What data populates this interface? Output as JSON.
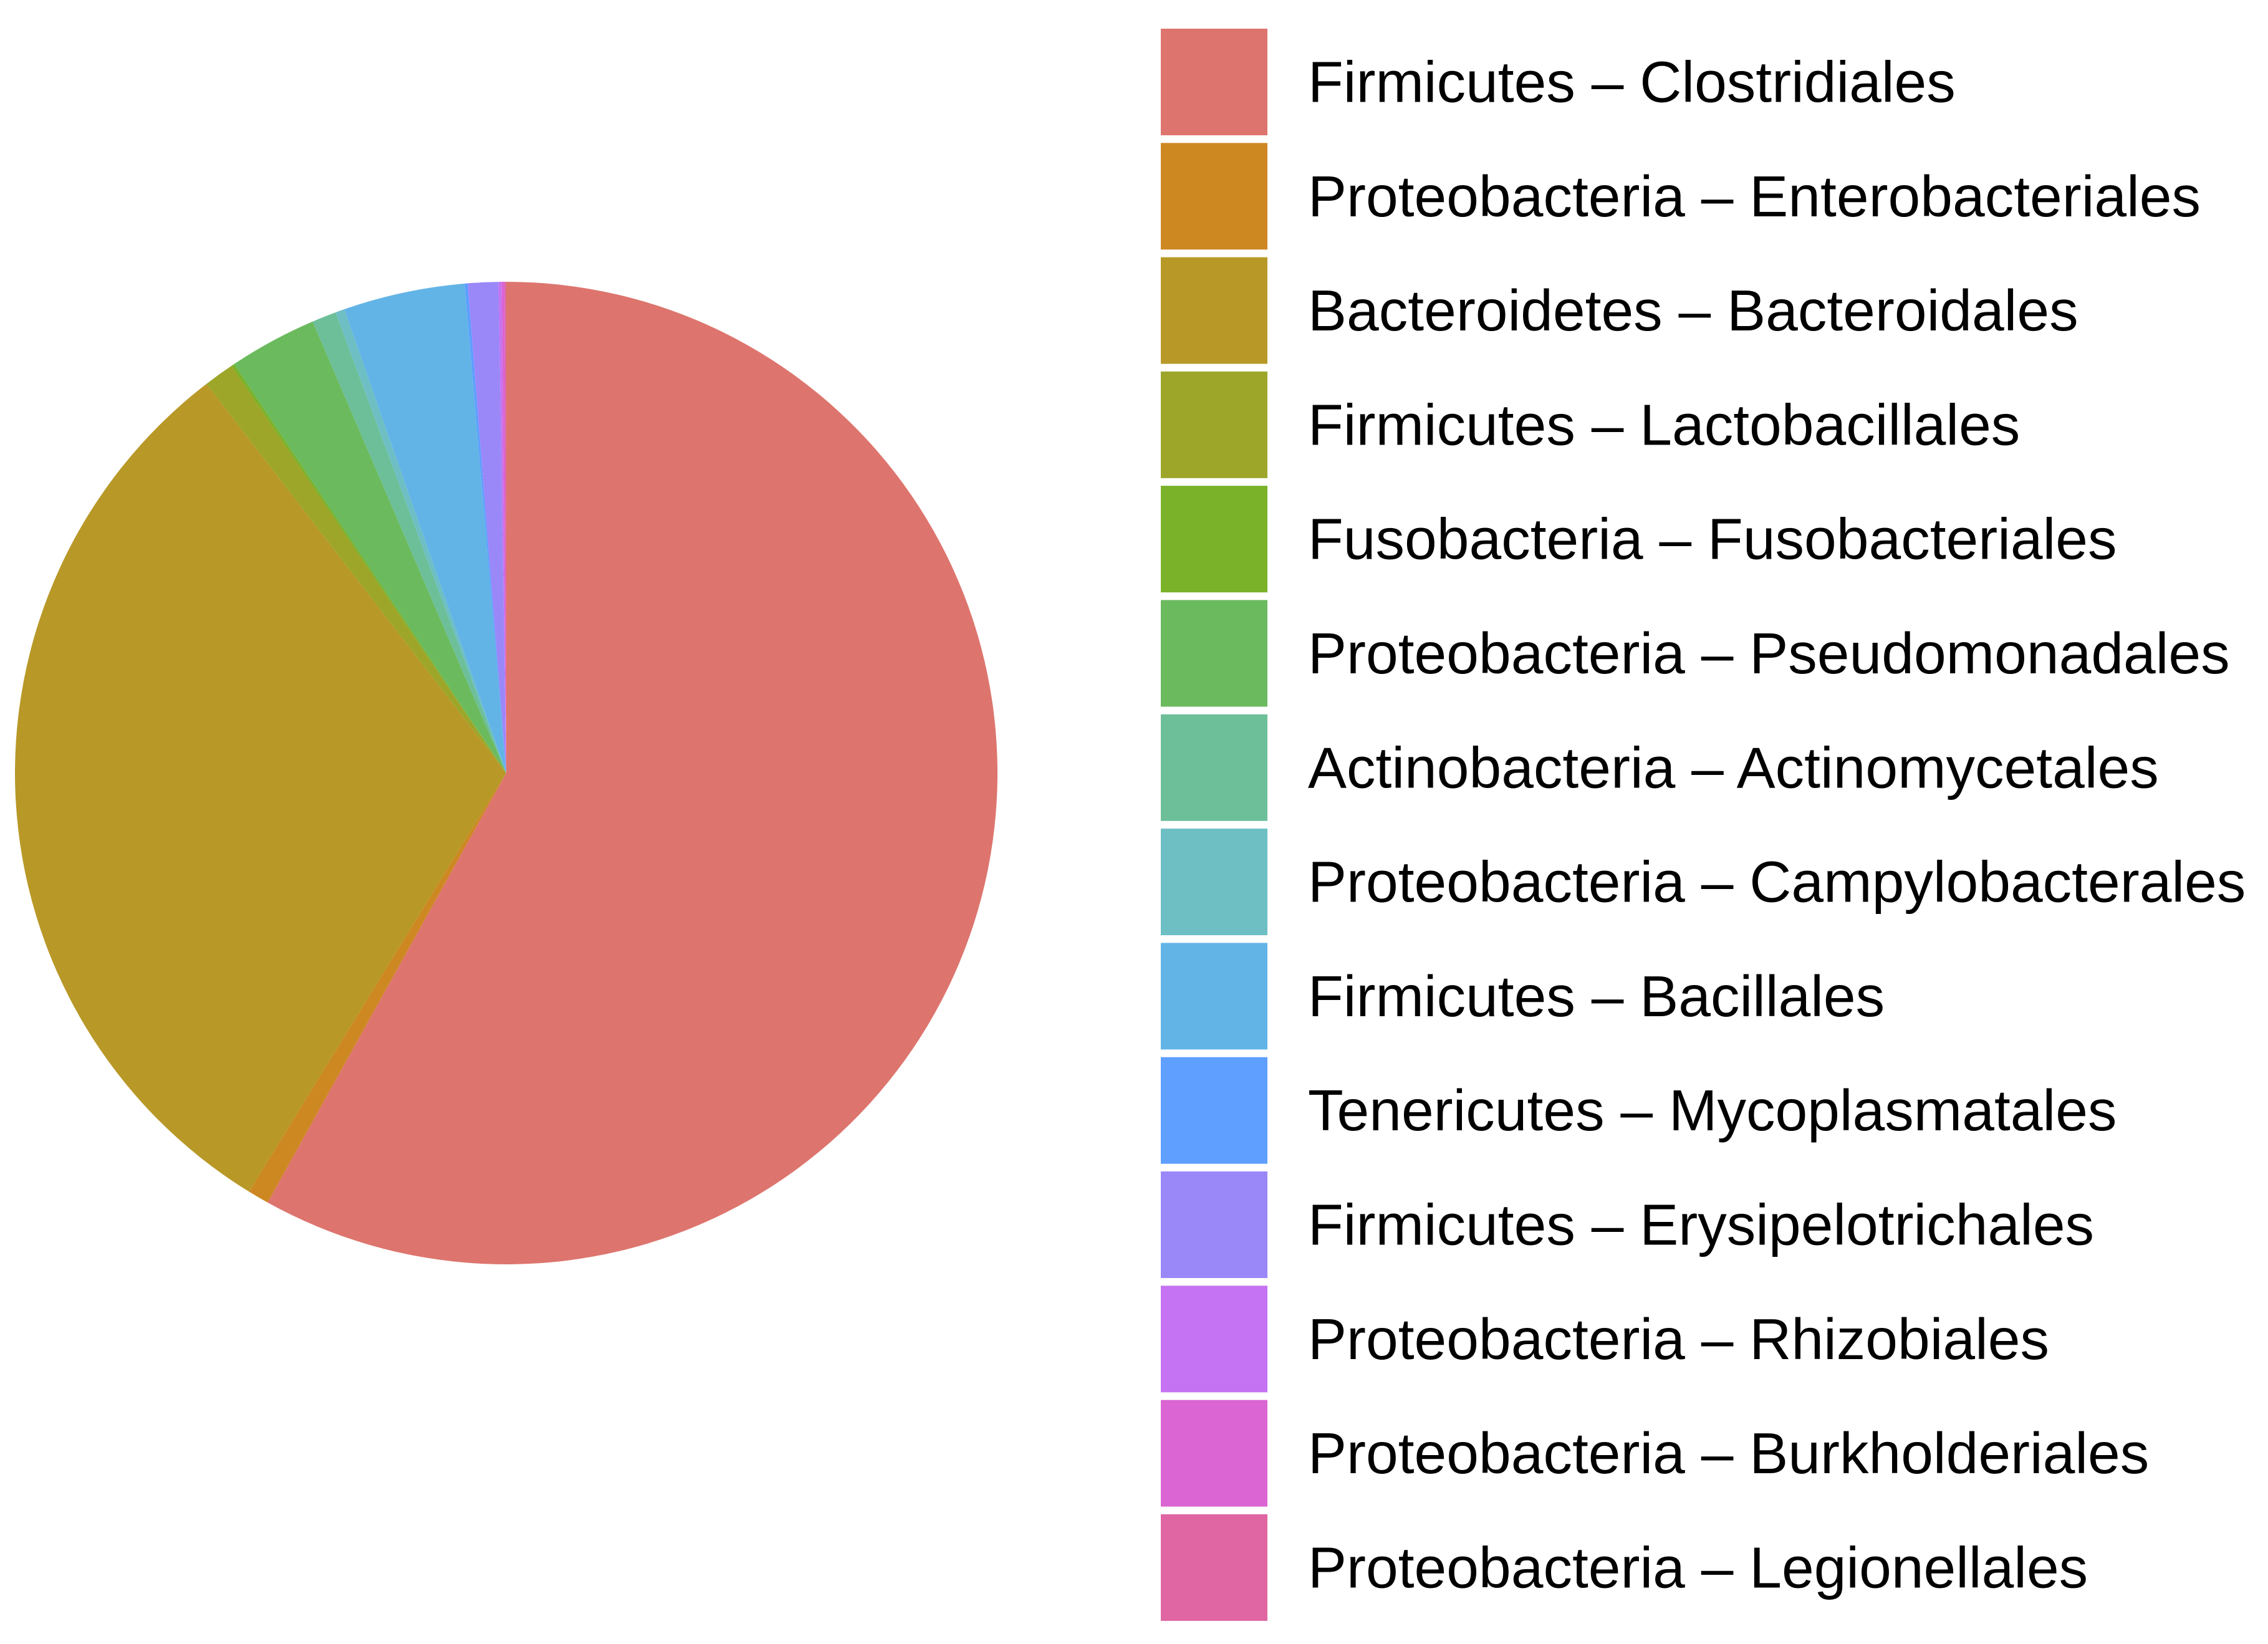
{
  "chart_data": {
    "type": "pie",
    "title": "",
    "start_angle_deg": 0,
    "direction": "clockwise",
    "legend_position": "right",
    "slices": [
      {
        "label": "Firmicutes – Clostridiales",
        "value": 58.1,
        "color": "#DD756E"
      },
      {
        "label": "Proteobacteria – Enterobacteriales",
        "value": 0.7,
        "color": "#CD8822"
      },
      {
        "label": "Bacteroidetes – Bacteroidales",
        "value": 30.8,
        "color": "#B89827"
      },
      {
        "label": "Firmicutes – Lactobacillales",
        "value": 1.0,
        "color": "#9DA629"
      },
      {
        "label": "Fusobacteria – Fusobacteriales",
        "value": 0.1,
        "color": "#7AB229"
      },
      {
        "label": "Proteobacteria – Pseudomonadales",
        "value": 2.9,
        "color": "#6BBA5E"
      },
      {
        "label": "Actinobacteria – Actinomycetales",
        "value": 0.8,
        "color": "#6DBF99"
      },
      {
        "label": "Proteobacteria – Campylobacterales",
        "value": 0.3,
        "color": "#6DBFC4"
      },
      {
        "label": "Firmicutes – Bacillales",
        "value": 4.0,
        "color": "#63B4E6"
      },
      {
        "label": "Tenericutes – Mycoplasmatales",
        "value": 0.1,
        "color": "#5E9FFF"
      },
      {
        "label": "Firmicutes – Erysipelotrichales",
        "value": 1.0,
        "color": "#9A88F8"
      },
      {
        "label": "Proteobacteria – Rhizobiales",
        "value": 0.1,
        "color": "#C573F2"
      },
      {
        "label": "Proteobacteria – Burkholderiales",
        "value": 0.1,
        "color": "#DA65D3"
      },
      {
        "label": "Proteobacteria – Legionellales",
        "value": 0.05,
        "color": "#E066A3"
      }
    ]
  }
}
